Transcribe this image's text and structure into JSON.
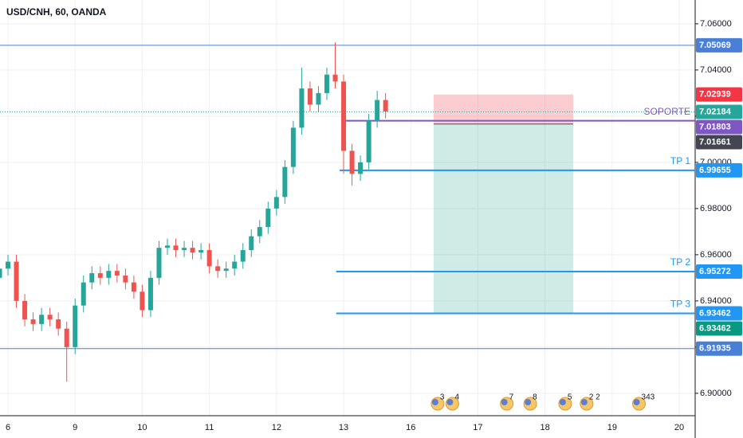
{
  "chart_data": {
    "type": "candlestick",
    "title": "USD/CNH, 60, OANDA",
    "x": [
      -0.125,
      0,
      0.125,
      0.25,
      0.375,
      0.5,
      0.625,
      0.75,
      0.875,
      1,
      1.125,
      1.25,
      1.375,
      1.5,
      1.625,
      1.75,
      1.875,
      2,
      2.125,
      2.25,
      2.375,
      2.5,
      2.625,
      2.75,
      2.875,
      3,
      3.125,
      3.25,
      3.375,
      3.5,
      3.625,
      3.75,
      3.875,
      4,
      4.125,
      4.25,
      4.375,
      4.5,
      4.625,
      4.75,
      4.875,
      5,
      5.125,
      5.25,
      5.375,
      5.5,
      5.625
    ],
    "open": [
      6.95,
      6.954,
      6.957,
      6.94,
      6.932,
      6.93,
      6.934,
      6.932,
      6.928,
      6.92,
      6.938,
      6.948,
      6.952,
      6.95,
      6.953,
      6.951,
      6.948,
      6.944,
      6.936,
      6.95,
      6.963,
      6.964,
      6.962,
      6.963,
      6.961,
      6.962,
      6.955,
      6.953,
      6.954,
      6.957,
      6.962,
      6.968,
      6.972,
      6.98,
      6.985,
      6.998,
      7.015,
      7.032,
      7.025,
      7.03,
      7.038,
      7.035,
      7.005,
      6.995,
      7.0,
      7.018,
      7.027
    ],
    "high": [
      6.957,
      6.96,
      6.96,
      6.943,
      6.935,
      6.937,
      6.937,
      6.935,
      6.931,
      6.941,
      6.951,
      6.955,
      6.955,
      6.956,
      6.956,
      6.954,
      6.951,
      6.947,
      6.953,
      6.966,
      6.967,
      6.967,
      6.966,
      6.966,
      6.965,
      6.965,
      6.958,
      6.957,
      6.96,
      6.965,
      6.971,
      6.975,
      6.983,
      6.988,
      7.001,
      7.018,
      7.041,
      7.035,
      7.033,
      7.041,
      7.052,
      7.038,
      7.008,
      7.003,
      7.021,
      7.031,
      7.03
    ],
    "low": [
      6.947,
      6.951,
      6.937,
      6.929,
      6.927,
      6.927,
      6.929,
      6.925,
      6.905,
      6.917,
      6.935,
      6.945,
      6.947,
      6.947,
      6.948,
      6.945,
      6.941,
      6.933,
      6.933,
      6.947,
      6.96,
      6.959,
      6.959,
      6.958,
      6.958,
      6.952,
      6.95,
      6.95,
      6.951,
      6.954,
      6.959,
      6.965,
      6.969,
      6.977,
      6.982,
      6.995,
      7.012,
      7.022,
      7.022,
      7.027,
      7.032,
      6.995,
      6.99,
      6.992,
      6.997,
      7.015,
      7.019
    ],
    "close": [
      6.954,
      6.957,
      6.94,
      6.932,
      6.93,
      6.934,
      6.932,
      6.928,
      6.92,
      6.938,
      6.948,
      6.952,
      6.95,
      6.953,
      6.951,
      6.948,
      6.944,
      6.936,
      6.95,
      6.963,
      6.964,
      6.962,
      6.963,
      6.961,
      6.962,
      6.955,
      6.953,
      6.954,
      6.957,
      6.962,
      6.968,
      6.972,
      6.98,
      6.985,
      6.998,
      7.015,
      7.032,
      7.025,
      7.03,
      7.038,
      7.035,
      7.005,
      6.995,
      7.0,
      7.018,
      7.027,
      7.022
    ],
    "up_color": "#26a69a",
    "down_color": "#ef5350",
    "xlim": [
      -0.119,
      10.237
    ],
    "xticks": [
      {
        "value": 0,
        "label": "6"
      },
      {
        "value": 1,
        "label": "9"
      },
      {
        "value": 2,
        "label": "10"
      },
      {
        "value": 3,
        "label": "11"
      },
      {
        "value": 4,
        "label": "12"
      },
      {
        "value": 5,
        "label": "13"
      },
      {
        "value": 6,
        "label": "16"
      },
      {
        "value": 7,
        "label": "17"
      },
      {
        "value": 8,
        "label": "18"
      },
      {
        "value": 9,
        "label": "19"
      },
      {
        "value": 10,
        "label": "20"
      }
    ],
    "ylim": [
      6.8903,
      7.0703
    ],
    "yticks": [
      {
        "value": 6.9,
        "label": "6.90000"
      },
      {
        "value": 6.92,
        "label": "6.92000"
      },
      {
        "value": 6.94,
        "label": "6.94000"
      },
      {
        "value": 6.96,
        "label": "6.96000"
      },
      {
        "value": 6.98,
        "label": "6.98000"
      },
      {
        "value": 7.0,
        "label": "7.00000"
      },
      {
        "value": 7.02,
        "label": "7.02000"
      },
      {
        "value": 7.04,
        "label": "7.04000"
      },
      {
        "value": 7.06,
        "label": "7.06000"
      }
    ],
    "grid": true,
    "levels": [
      {
        "value": 7.05069,
        "color": "#4a7fd6",
        "start": -0.119
      },
      {
        "value": 6.91935,
        "color": "#4a7fd6",
        "start": -0.119
      },
      {
        "name": "SOPORTE",
        "value": 7.01803,
        "color": "#7e57c2",
        "start": 5.0
      },
      {
        "name": "TP 1",
        "value": 6.99655,
        "color": "#2196f3",
        "start": 4.94
      },
      {
        "name": "TP 2",
        "value": 6.95272,
        "color": "#2196f3",
        "start": 4.89
      },
      {
        "name": "TP 3",
        "value": 6.93462,
        "color": "#2196f3",
        "start": 4.89
      }
    ],
    "last_price": {
      "value": 7.02184,
      "color": "#26a69a"
    },
    "position": {
      "x_start": 6.34,
      "x_end": 8.42,
      "stop": 7.02939,
      "entry": 7.01661,
      "target": 6.93462,
      "stop_color": "#f23645",
      "entry_color": "#434651",
      "target_color": "#089981"
    },
    "events": [
      {
        "x": 6.4,
        "label": "3"
      },
      {
        "x": 6.62,
        "label": "4"
      },
      {
        "x": 7.43,
        "label": "7"
      },
      {
        "x": 7.78,
        "label": "8"
      },
      {
        "x": 8.3,
        "label": "5"
      },
      {
        "x": 8.62,
        "label": "2 2"
      },
      {
        "x": 9.4,
        "label": "343"
      }
    ]
  }
}
